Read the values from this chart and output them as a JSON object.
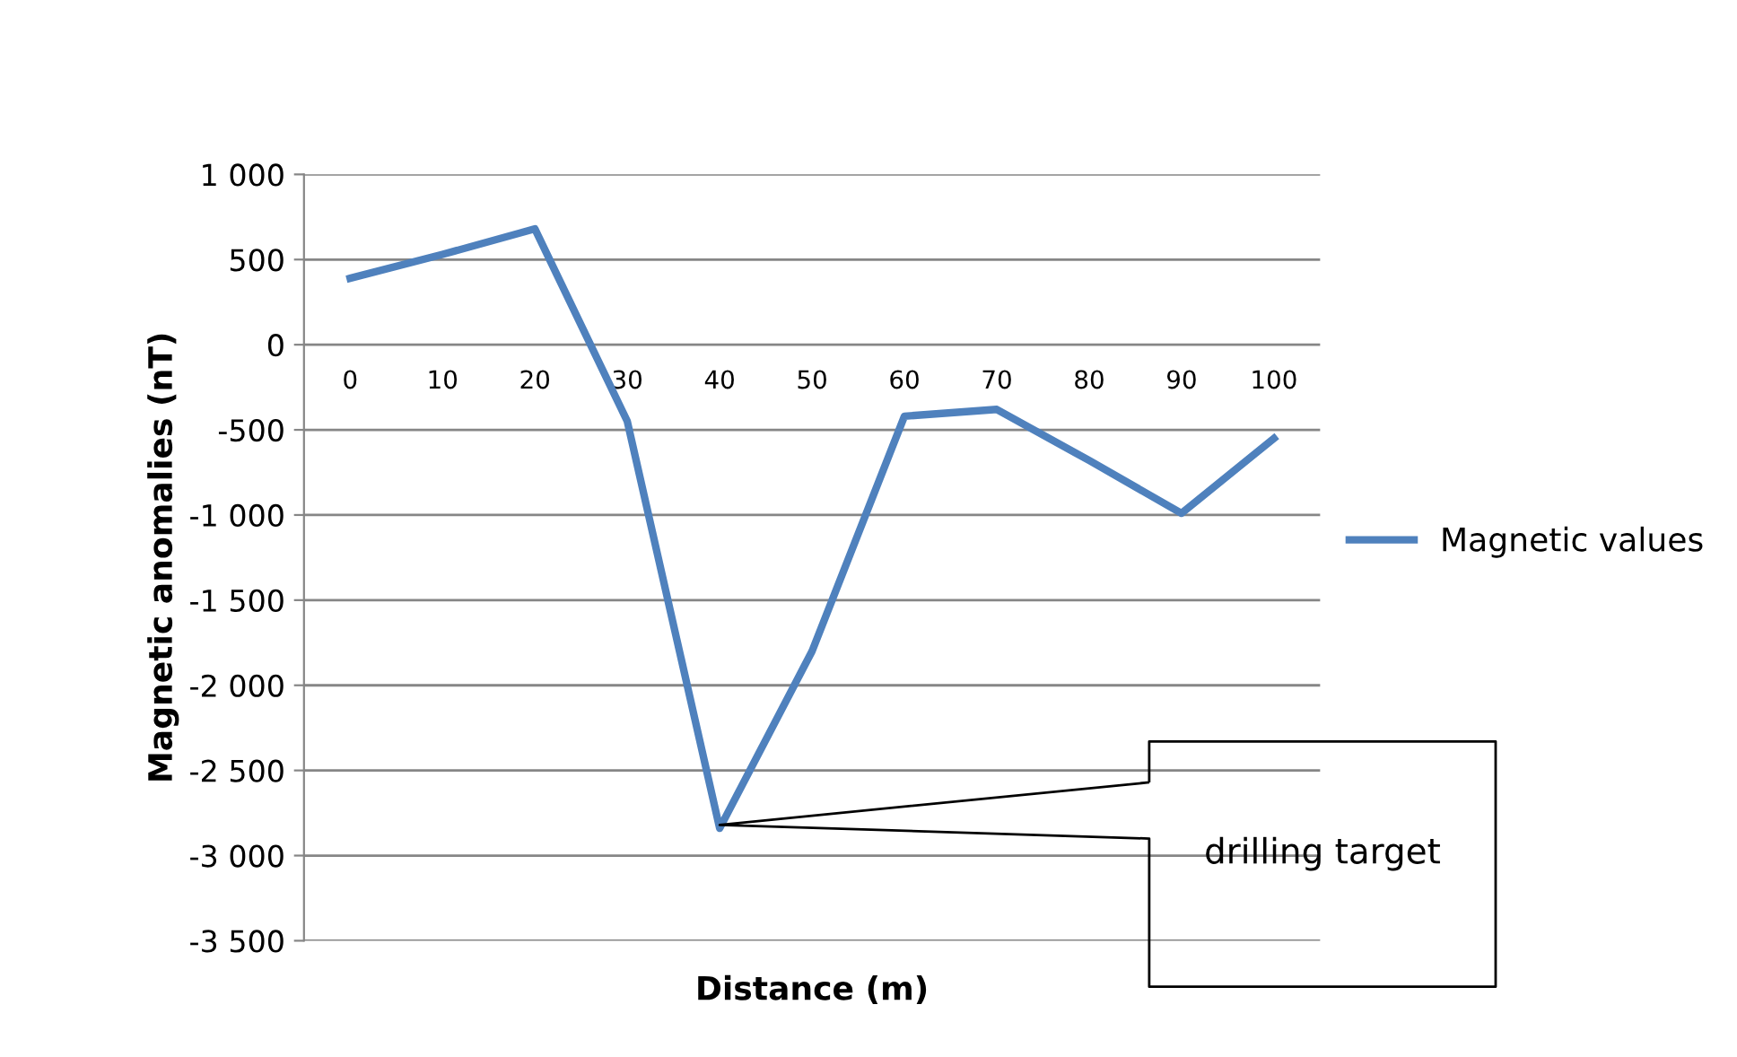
{
  "chart_data": {
    "type": "line",
    "xlabel": "Distance (m)",
    "ylabel": "Magnetic anomalies (nT)",
    "categories": [
      "0",
      "10",
      "20",
      "30",
      "40",
      "50",
      "60",
      "70",
      "80",
      "90",
      "100"
    ],
    "series": [
      {
        "name": "Magnetic values",
        "color": "#4f81bd",
        "values": [
          390,
          530,
          680,
          -450,
          -2840,
          -1800,
          -420,
          -380,
          -680,
          -990,
          -550
        ]
      }
    ],
    "ylim": [
      -3500,
      1000
    ],
    "yticks": [
      {
        "value": -3500,
        "label": "-3 500"
      },
      {
        "value": -3000,
        "label": "-3 000"
      },
      {
        "value": -2500,
        "label": "-2 500"
      },
      {
        "value": -2000,
        "label": "-2 000"
      },
      {
        "value": -1500,
        "label": "-1 500"
      },
      {
        "value": -1000,
        "label": "-1 000"
      },
      {
        "value": -500,
        "label": "-500"
      },
      0,
      500,
      {
        "value": 1000,
        "label": "1 000"
      }
    ],
    "grid": "y",
    "legend": "right",
    "marker": "none",
    "line_style": "solid",
    "annotations": [
      "drilling target"
    ]
  }
}
